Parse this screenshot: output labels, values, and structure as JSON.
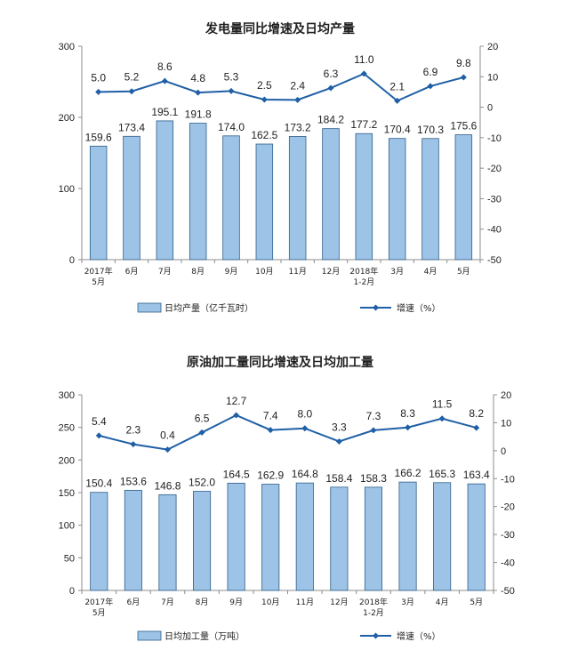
{
  "chart_data": [
    {
      "type": "bar",
      "title": "发电量同比增速及日均产量",
      "categories": [
        [
          "2017年",
          "5月"
        ],
        [
          "6月"
        ],
        [
          "7月"
        ],
        [
          "8月"
        ],
        [
          "9月"
        ],
        [
          "10月"
        ],
        [
          "11月"
        ],
        [
          "12月"
        ],
        [
          "2018年",
          "1-2月"
        ],
        [
          "3月"
        ],
        [
          "4月"
        ],
        [
          "5月"
        ]
      ],
      "series": [
        {
          "name": "日均产量（亿千瓦时）",
          "type": "bar",
          "axis": "left",
          "values": [
            159.6,
            173.4,
            195.1,
            191.8,
            174.0,
            162.5,
            173.2,
            184.2,
            177.2,
            170.4,
            170.3,
            175.6
          ],
          "labels": [
            "159.6",
            "173.4",
            "195.1",
            "191.8",
            "174.0",
            "162.5",
            "173.2",
            "184.2",
            "177.2",
            "170.4",
            "170.3",
            "175.6"
          ]
        },
        {
          "name": "增速（%）",
          "type": "line",
          "axis": "right",
          "values": [
            5.0,
            5.2,
            8.6,
            4.8,
            5.3,
            2.5,
            2.4,
            6.3,
            11.0,
            2.1,
            6.9,
            9.8
          ],
          "labels": [
            "5.0",
            "5.2",
            "8.6",
            "4.8",
            "5.3",
            "2.5",
            "2.4",
            "6.3",
            "11.0",
            "2.1",
            "6.9",
            "9.8"
          ]
        }
      ],
      "ylim_left": [
        0,
        300
      ],
      "yticks_left": [
        "0",
        "100",
        "200",
        "300"
      ],
      "ylim_right": [
        -50,
        20
      ],
      "yticks_right": [
        "20",
        "10",
        "0",
        "-10",
        "-20",
        "-30",
        "-40",
        "-50"
      ],
      "legend_placement": "bottom",
      "bar_color": "#9dc3e6",
      "line_color": "#1f5fa6"
    },
    {
      "type": "bar",
      "title": "原油加工量同比增速及日均加工量",
      "categories": [
        [
          "2017年",
          "5月"
        ],
        [
          "6月"
        ],
        [
          "7月"
        ],
        [
          "8月"
        ],
        [
          "9月"
        ],
        [
          "10月"
        ],
        [
          "11月"
        ],
        [
          "12月"
        ],
        [
          "2018年",
          "1-2月"
        ],
        [
          "3月"
        ],
        [
          "4月"
        ],
        [
          "5月"
        ]
      ],
      "series": [
        {
          "name": "日均加工量（万吨）",
          "type": "bar",
          "axis": "left",
          "values": [
            150.4,
            153.6,
            146.8,
            152.0,
            164.5,
            162.9,
            164.8,
            158.4,
            158.3,
            166.2,
            165.3,
            163.4
          ],
          "labels": [
            "150.4",
            "153.6",
            "146.8",
            "152.0",
            "164.5",
            "162.9",
            "164.8",
            "158.4",
            "158.3",
            "166.2",
            "165.3",
            "163.4"
          ]
        },
        {
          "name": "增速（%）",
          "type": "line",
          "axis": "right",
          "values": [
            5.4,
            2.3,
            0.4,
            6.5,
            12.7,
            7.4,
            8.0,
            3.3,
            7.3,
            8.3,
            11.5,
            8.2
          ],
          "labels": [
            "5.4",
            "2.3",
            "0.4",
            "6.5",
            "12.7",
            "7.4",
            "8.0",
            "3.3",
            "7.3",
            "8.3",
            "11.5",
            "8.2"
          ]
        }
      ],
      "ylim_left": [
        0,
        300
      ],
      "yticks_left": [
        "0",
        "50",
        "100",
        "150",
        "200",
        "250",
        "300"
      ],
      "ylim_right": [
        -50,
        20
      ],
      "yticks_right": [
        "20",
        "10",
        "0",
        "-10",
        "-20",
        "-30",
        "-40",
        "-50"
      ],
      "legend_placement": "bottom",
      "bar_color": "#9dc3e6",
      "line_color": "#1f5fa6"
    }
  ]
}
